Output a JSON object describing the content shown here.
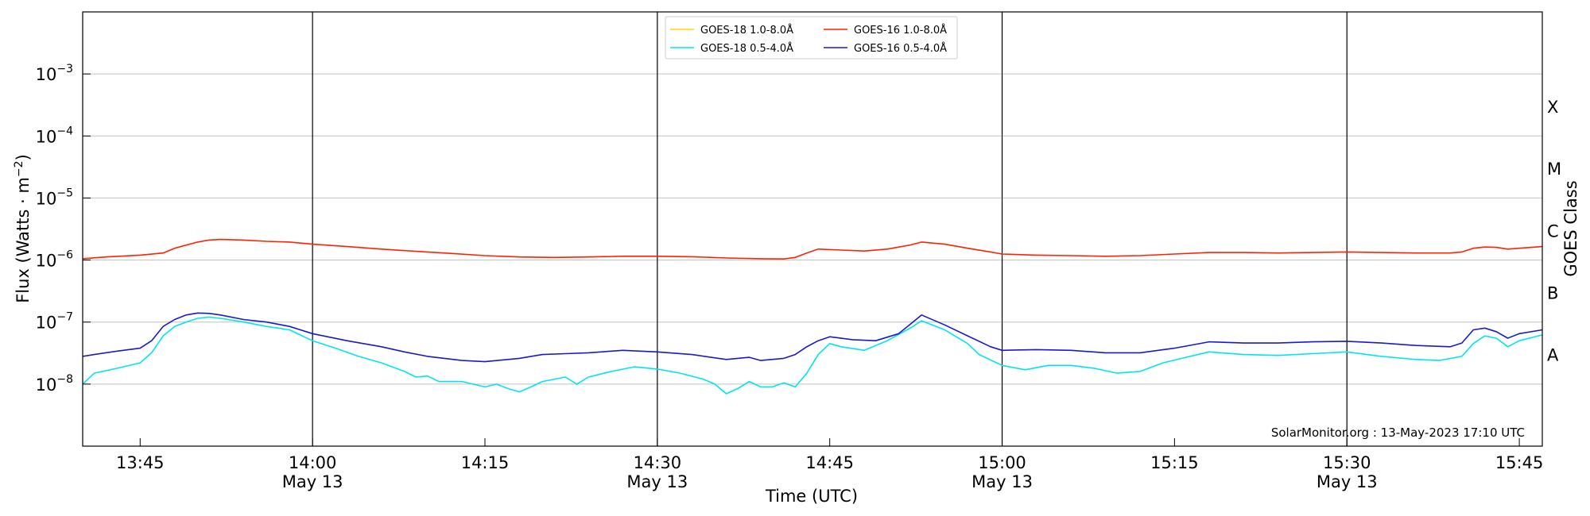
{
  "chart_data": {
    "type": "line",
    "xlabel": "Time (UTC)",
    "ylabel": "Flux (Watts · m⁻²)",
    "ylabel_parts": [
      "Flux (Watts ",
      "·",
      " m",
      "−2",
      ")"
    ],
    "right_label": "GOES Class",
    "y_scale": "log",
    "ylim": [
      1e-09,
      0.01
    ],
    "x_range": [
      "2023-05-13 13:40",
      "2023-05-13 15:47"
    ],
    "grid": "horizontal",
    "credit": "SolarMonitor.org : 13-May-2023 17:10 UTC",
    "legend_position": "top-center",
    "y_ticks": [
      {
        "base": "10",
        "exp": "−3",
        "value": 0.001
      },
      {
        "base": "10",
        "exp": "−4",
        "value": 0.0001
      },
      {
        "base": "10",
        "exp": "−5",
        "value": 1e-05
      },
      {
        "base": "10",
        "exp": "−6",
        "value": 1e-06
      },
      {
        "base": "10",
        "exp": "−7",
        "value": 1e-07
      },
      {
        "base": "10",
        "exp": "−8",
        "value": 1e-08
      }
    ],
    "x_ticks": [
      {
        "time": "13:45",
        "label": "13:45",
        "date": ""
      },
      {
        "time": "14:00",
        "label": "14:00",
        "date": "May 13"
      },
      {
        "time": "14:15",
        "label": "14:15",
        "date": ""
      },
      {
        "time": "14:30",
        "label": "14:30",
        "date": "May 13"
      },
      {
        "time": "14:45",
        "label": "14:45",
        "date": ""
      },
      {
        "time": "15:00",
        "label": "15:00",
        "date": "May 13"
      },
      {
        "time": "15:15",
        "label": "15:15",
        "date": ""
      },
      {
        "time": "15:30",
        "label": "15:30",
        "date": "May 13"
      },
      {
        "time": "15:45",
        "label": "15:45",
        "date": ""
      }
    ],
    "vertical_lines": [
      "14:00",
      "14:30",
      "15:00",
      "15:30"
    ],
    "flare_classes": [
      {
        "label": "X",
        "value": 0.0003
      },
      {
        "label": "M",
        "value": 3e-05
      },
      {
        "label": "C",
        "value": 3e-06
      },
      {
        "label": "B",
        "value": 3e-07
      },
      {
        "label": "A",
        "value": 3e-08
      }
    ],
    "legend": [
      {
        "name": "GOES-18 1.0-8.0Å",
        "color": "#ffd700"
      },
      {
        "name": "GOES-16 1.0-8.0Å",
        "color": "#ff2200"
      },
      {
        "name": "GOES-18 0.5-4.0Å",
        "color": "#00e5ee"
      },
      {
        "name": "GOES-16 0.5-4.0Å",
        "color": "#1a1acd"
      }
    ],
    "series": [
      {
        "name": "GOES-18 1.0-8.0Å",
        "color": "#ffd700",
        "data": []
      },
      {
        "name": "GOES-16 1.0-8.0Å",
        "color": "#ff2200",
        "data": [
          [
            "13:40",
            1.05e-06
          ],
          [
            "13:42",
            1.12e-06
          ],
          [
            "13:45",
            1.2e-06
          ],
          [
            "13:47",
            1.3e-06
          ],
          [
            "13:48",
            1.55e-06
          ],
          [
            "13:50",
            1.95e-06
          ],
          [
            "13:51",
            2.1e-06
          ],
          [
            "13:52",
            2.15e-06
          ],
          [
            "13:54",
            2.1e-06
          ],
          [
            "13:56",
            2e-06
          ],
          [
            "13:58",
            1.95e-06
          ],
          [
            "14:00",
            1.8e-06
          ],
          [
            "14:03",
            1.65e-06
          ],
          [
            "14:06",
            1.5e-06
          ],
          [
            "14:09",
            1.38e-06
          ],
          [
            "14:12",
            1.28e-06
          ],
          [
            "14:15",
            1.18e-06
          ],
          [
            "14:18",
            1.12e-06
          ],
          [
            "14:21",
            1.1e-06
          ],
          [
            "14:24",
            1.12e-06
          ],
          [
            "14:27",
            1.15e-06
          ],
          [
            "14:30",
            1.15e-06
          ],
          [
            "14:33",
            1.13e-06
          ],
          [
            "14:36",
            1.08e-06
          ],
          [
            "14:39",
            1.05e-06
          ],
          [
            "14:41",
            1.04e-06
          ],
          [
            "14:42",
            1.1e-06
          ],
          [
            "14:43",
            1.3e-06
          ],
          [
            "14:44",
            1.5e-06
          ],
          [
            "14:46",
            1.45e-06
          ],
          [
            "14:48",
            1.4e-06
          ],
          [
            "14:50",
            1.5e-06
          ],
          [
            "14:52",
            1.75e-06
          ],
          [
            "14:53",
            1.95e-06
          ],
          [
            "14:55",
            1.8e-06
          ],
          [
            "14:57",
            1.55e-06
          ],
          [
            "14:59",
            1.35e-06
          ],
          [
            "15:00",
            1.25e-06
          ],
          [
            "15:03",
            1.2e-06
          ],
          [
            "15:06",
            1.18e-06
          ],
          [
            "15:09",
            1.15e-06
          ],
          [
            "15:12",
            1.18e-06
          ],
          [
            "15:15",
            1.25e-06
          ],
          [
            "15:18",
            1.32e-06
          ],
          [
            "15:21",
            1.32e-06
          ],
          [
            "15:24",
            1.3e-06
          ],
          [
            "15:27",
            1.32e-06
          ],
          [
            "15:30",
            1.35e-06
          ],
          [
            "15:33",
            1.32e-06
          ],
          [
            "15:36",
            1.3e-06
          ],
          [
            "15:39",
            1.3e-06
          ],
          [
            "15:40",
            1.35e-06
          ],
          [
            "15:41",
            1.55e-06
          ],
          [
            "15:42",
            1.62e-06
          ],
          [
            "15:43",
            1.6e-06
          ],
          [
            "15:44",
            1.5e-06
          ],
          [
            "15:45",
            1.55e-06
          ],
          [
            "15:47",
            1.65e-06
          ]
        ]
      },
      {
        "name": "GOES-18 0.5-4.0Å",
        "color": "#00e5ee",
        "data": [
          [
            "13:40",
            1e-08
          ],
          [
            "13:41",
            1.5e-08
          ],
          [
            "13:43",
            1.8e-08
          ],
          [
            "13:45",
            2.2e-08
          ],
          [
            "13:46",
            3.2e-08
          ],
          [
            "13:47",
            6e-08
          ],
          [
            "13:48",
            8.5e-08
          ],
          [
            "13:49",
            1e-07
          ],
          [
            "13:50",
            1.15e-07
          ],
          [
            "13:51",
            1.2e-07
          ],
          [
            "13:52",
            1.15e-07
          ],
          [
            "13:54",
            1e-07
          ],
          [
            "13:56",
            8.5e-08
          ],
          [
            "13:58",
            7.5e-08
          ],
          [
            "14:00",
            5e-08
          ],
          [
            "14:02",
            3.8e-08
          ],
          [
            "14:04",
            2.8e-08
          ],
          [
            "14:06",
            2.2e-08
          ],
          [
            "14:08",
            1.6e-08
          ],
          [
            "14:09",
            1.3e-08
          ],
          [
            "14:10",
            1.35e-08
          ],
          [
            "14:11",
            1.1e-08
          ],
          [
            "14:13",
            1.1e-08
          ],
          [
            "14:15",
            9e-09
          ],
          [
            "14:16",
            1e-08
          ],
          [
            "14:17",
            8.5e-09
          ],
          [
            "14:18",
            7.5e-09
          ],
          [
            "14:19",
            9e-09
          ],
          [
            "14:20",
            1.1e-08
          ],
          [
            "14:22",
            1.3e-08
          ],
          [
            "14:23",
            1e-08
          ],
          [
            "14:24",
            1.3e-08
          ],
          [
            "14:26",
            1.6e-08
          ],
          [
            "14:28",
            1.9e-08
          ],
          [
            "14:30",
            1.75e-08
          ],
          [
            "14:32",
            1.5e-08
          ],
          [
            "14:34",
            1.2e-08
          ],
          [
            "14:35",
            1e-08
          ],
          [
            "14:36",
            7e-09
          ],
          [
            "14:37",
            8.5e-09
          ],
          [
            "14:38",
            1.1e-08
          ],
          [
            "14:39",
            9e-09
          ],
          [
            "14:40",
            9e-09
          ],
          [
            "14:41",
            1.05e-08
          ],
          [
            "14:42",
            9e-09
          ],
          [
            "14:43",
            1.5e-08
          ],
          [
            "14:44",
            3e-08
          ],
          [
            "14:45",
            4.5e-08
          ],
          [
            "14:46",
            4e-08
          ],
          [
            "14:48",
            3.5e-08
          ],
          [
            "14:50",
            5e-08
          ],
          [
            "14:52",
            8e-08
          ],
          [
            "14:53",
            1.05e-07
          ],
          [
            "14:55",
            7.5e-08
          ],
          [
            "14:57",
            4.5e-08
          ],
          [
            "14:58",
            3e-08
          ],
          [
            "15:00",
            2e-08
          ],
          [
            "15:02",
            1.7e-08
          ],
          [
            "15:04",
            2e-08
          ],
          [
            "15:06",
            2e-08
          ],
          [
            "15:08",
            1.8e-08
          ],
          [
            "15:10",
            1.5e-08
          ],
          [
            "15:12",
            1.6e-08
          ],
          [
            "15:14",
            2.2e-08
          ],
          [
            "15:16",
            2.7e-08
          ],
          [
            "15:18",
            3.3e-08
          ],
          [
            "15:21",
            3e-08
          ],
          [
            "15:24",
            2.9e-08
          ],
          [
            "15:27",
            3.1e-08
          ],
          [
            "15:30",
            3.3e-08
          ],
          [
            "15:33",
            2.8e-08
          ],
          [
            "15:36",
            2.5e-08
          ],
          [
            "15:38",
            2.4e-08
          ],
          [
            "15:40",
            2.8e-08
          ],
          [
            "15:41",
            4.5e-08
          ],
          [
            "15:42",
            6e-08
          ],
          [
            "15:43",
            5.5e-08
          ],
          [
            "15:44",
            4e-08
          ],
          [
            "15:45",
            5e-08
          ],
          [
            "15:47",
            6.2e-08
          ]
        ]
      },
      {
        "name": "GOES-16 0.5-4.0Å",
        "color": "#1a1acd",
        "data": [
          [
            "13:40",
            2.8e-08
          ],
          [
            "13:41",
            3e-08
          ],
          [
            "13:43",
            3.4e-08
          ],
          [
            "13:45",
            3.8e-08
          ],
          [
            "13:46",
            5e-08
          ],
          [
            "13:47",
            8.5e-08
          ],
          [
            "13:48",
            1.1e-07
          ],
          [
            "13:49",
            1.3e-07
          ],
          [
            "13:50",
            1.4e-07
          ],
          [
            "13:51",
            1.38e-07
          ],
          [
            "13:52",
            1.3e-07
          ],
          [
            "13:54",
            1.1e-07
          ],
          [
            "13:56",
            1e-07
          ],
          [
            "13:58",
            8.5e-08
          ],
          [
            "14:00",
            6.5e-08
          ],
          [
            "14:03",
            5e-08
          ],
          [
            "14:06",
            4e-08
          ],
          [
            "14:08",
            3.3e-08
          ],
          [
            "14:10",
            2.8e-08
          ],
          [
            "14:13",
            2.4e-08
          ],
          [
            "14:15",
            2.3e-08
          ],
          [
            "14:18",
            2.6e-08
          ],
          [
            "14:20",
            3e-08
          ],
          [
            "14:22",
            3.1e-08
          ],
          [
            "14:24",
            3.2e-08
          ],
          [
            "14:27",
            3.5e-08
          ],
          [
            "14:30",
            3.3e-08
          ],
          [
            "14:33",
            3e-08
          ],
          [
            "14:36",
            2.5e-08
          ],
          [
            "14:38",
            2.7e-08
          ],
          [
            "14:39",
            2.4e-08
          ],
          [
            "14:41",
            2.6e-08
          ],
          [
            "14:42",
            3e-08
          ],
          [
            "14:43",
            4e-08
          ],
          [
            "14:44",
            5e-08
          ],
          [
            "14:45",
            5.8e-08
          ],
          [
            "14:47",
            5.2e-08
          ],
          [
            "14:49",
            5e-08
          ],
          [
            "14:51",
            6.5e-08
          ],
          [
            "14:53",
            1.3e-07
          ],
          [
            "14:55",
            9e-08
          ],
          [
            "14:57",
            6e-08
          ],
          [
            "14:59",
            4e-08
          ],
          [
            "15:00",
            3.5e-08
          ],
          [
            "15:03",
            3.6e-08
          ],
          [
            "15:06",
            3.5e-08
          ],
          [
            "15:09",
            3.2e-08
          ],
          [
            "15:12",
            3.2e-08
          ],
          [
            "15:15",
            3.8e-08
          ],
          [
            "15:18",
            4.8e-08
          ],
          [
            "15:21",
            4.6e-08
          ],
          [
            "15:24",
            4.6e-08
          ],
          [
            "15:27",
            4.8e-08
          ],
          [
            "15:30",
            4.9e-08
          ],
          [
            "15:33",
            4.6e-08
          ],
          [
            "15:36",
            4.2e-08
          ],
          [
            "15:39",
            4e-08
          ],
          [
            "15:40",
            4.6e-08
          ],
          [
            "15:41",
            7.5e-08
          ],
          [
            "15:42",
            8e-08
          ],
          [
            "15:43",
            7e-08
          ],
          [
            "15:44",
            5.5e-08
          ],
          [
            "15:45",
            6.5e-08
          ],
          [
            "15:47",
            7.5e-08
          ]
        ]
      }
    ]
  }
}
